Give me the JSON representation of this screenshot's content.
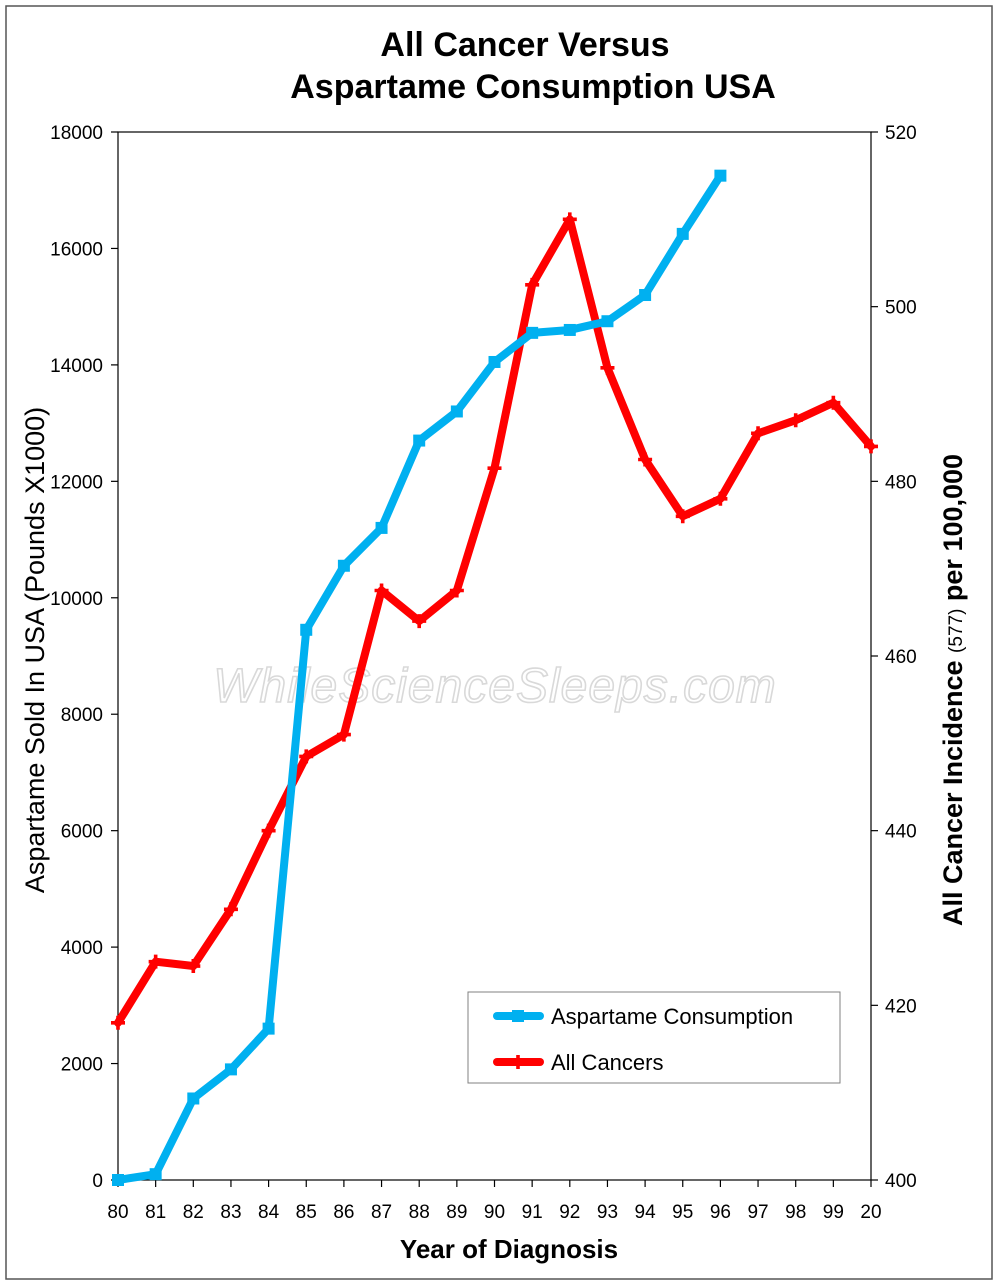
{
  "chart_data": {
    "type": "line",
    "title": [
      "All Cancer Versus",
      "Aspartame Consumption USA"
    ],
    "xlabel": "Year of Diagnosis",
    "ylabel_left": "Aspartame Sold In USA  (Pounds X1000)",
    "ylabel_right_parts": [
      "All Cancer Incidence ",
      "(577)",
      " per 100,000"
    ],
    "categories": [
      "80",
      "81",
      "82",
      "83",
      "84",
      "85",
      "86",
      "87",
      "88",
      "89",
      "90",
      "91",
      "92",
      "93",
      "94",
      "95",
      "96",
      "97",
      "98",
      "99",
      "20"
    ],
    "y_left": {
      "ticks": [
        0,
        2000,
        4000,
        6000,
        8000,
        10000,
        12000,
        14000,
        16000,
        18000
      ],
      "range": [
        0,
        18000
      ]
    },
    "y_right": {
      "ticks": [
        400,
        420,
        440,
        460,
        480,
        500,
        520
      ],
      "range": [
        400,
        520
      ]
    },
    "grid": false,
    "legend_position": "bottom-right",
    "watermark": "WhileScienceSleeps.com",
    "series": [
      {
        "name": "Aspartame Consumption",
        "axis": "left",
        "color": "#00b0f0",
        "marker": "square",
        "values": [
          0,
          100,
          1400,
          1900,
          2600,
          9450,
          10550,
          11200,
          12700,
          13200,
          14050,
          14550,
          14600,
          14750,
          15200,
          16250,
          17250,
          null,
          null,
          null,
          null
        ]
      },
      {
        "name": "All Cancers",
        "axis": "right",
        "color": "#ff0000",
        "marker": "cross",
        "values": [
          418,
          425,
          424.5,
          431,
          440,
          448.5,
          451,
          467.5,
          464,
          467.5,
          481.5,
          502.5,
          510,
          493,
          482.5,
          476,
          478,
          485.5,
          487,
          489,
          484
        ]
      }
    ]
  }
}
